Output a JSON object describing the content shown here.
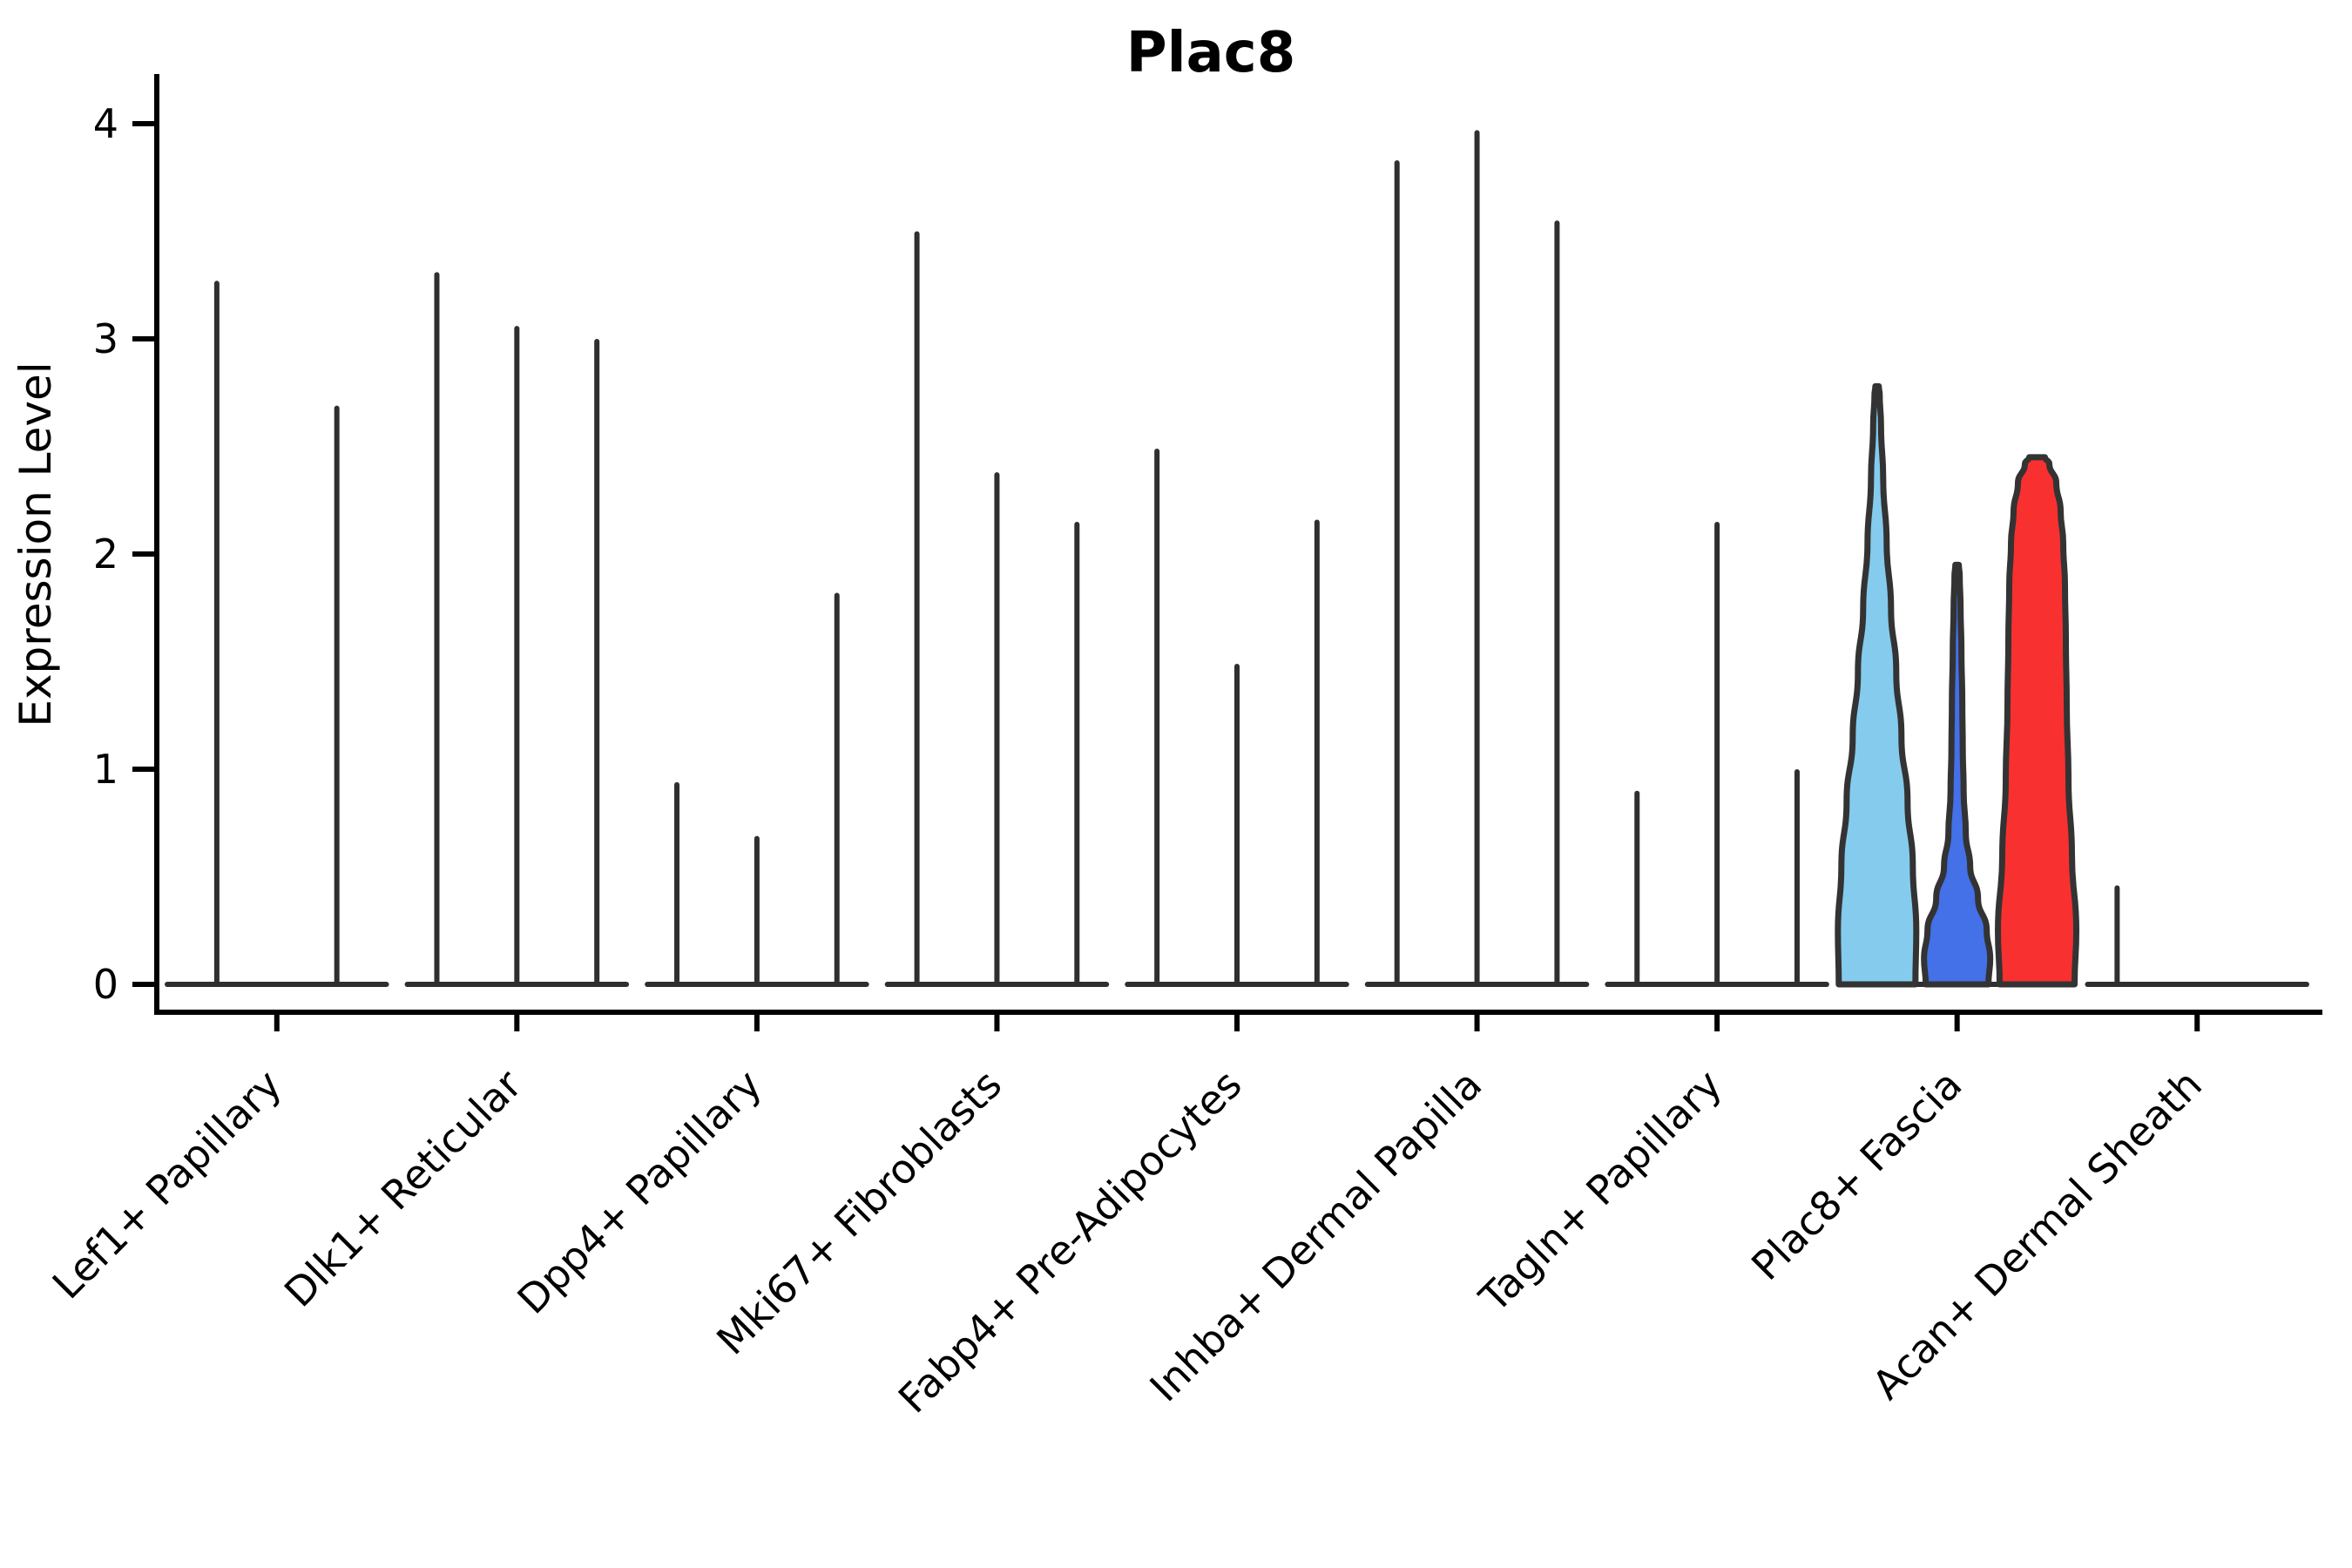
{
  "title": "Plac8",
  "ylabel": "Expression Level",
  "colors": {
    "spike": "#2F2F2F",
    "axis": "#000000",
    "violin_outline": "#333333",
    "fascia_light_blue": "#85CBEE",
    "fascia_royal_blue": "#4470E8",
    "fascia_red": "#F93030",
    "background": "#FFFFFF"
  },
  "chart_data": {
    "type": "violin",
    "title": "Plac8",
    "xlabel": "",
    "ylabel": "Expression Level",
    "ylim": [
      0,
      4.15
    ],
    "yticks": [
      0,
      1,
      2,
      3,
      4
    ],
    "grid": false,
    "legend": "none",
    "categories": [
      "Lef1+ Papillary",
      "Dlk1+ Reticular",
      "Dpp4+ Papillary",
      "Mki67+ Fibroblasts",
      "Fabp4+ Pre-Adipocytes",
      "Inhba+ Dermal Papilla",
      "Tagln+ Papillary",
      "Plac8+ Fascia",
      "Acan+ Dermal Sheath"
    ],
    "note": "Most violins are collapsed to thin spikes (near-zero density above 0); only Plac8+ Fascia shows wide colored violins.",
    "groups": [
      {
        "category": "Lef1+ Papillary",
        "violins": [
          {
            "kind": "spike",
            "max": 3.27
          },
          {
            "kind": "spike",
            "max": 2.69
          }
        ]
      },
      {
        "category": "Dlk1+ Reticular",
        "violins": [
          {
            "kind": "spike",
            "max": 3.31
          },
          {
            "kind": "spike",
            "max": 3.06
          },
          {
            "kind": "spike",
            "max": 3.0
          }
        ]
      },
      {
        "category": "Dpp4+ Papillary",
        "violins": [
          {
            "kind": "spike",
            "max": 0.94
          },
          {
            "kind": "spike",
            "max": 0.69
          },
          {
            "kind": "spike",
            "max": 1.82
          }
        ]
      },
      {
        "category": "Mki67+ Fibroblasts",
        "violins": [
          {
            "kind": "spike",
            "max": 3.5
          },
          {
            "kind": "spike",
            "max": 2.38
          },
          {
            "kind": "spike",
            "max": 2.15
          }
        ]
      },
      {
        "category": "Fabp4+ Pre-Adipocytes",
        "violins": [
          {
            "kind": "spike",
            "max": 2.49
          },
          {
            "kind": "spike",
            "max": 1.49
          },
          {
            "kind": "spike",
            "max": 2.16
          }
        ]
      },
      {
        "category": "Inhba+ Dermal Papilla",
        "violins": [
          {
            "kind": "spike",
            "max": 3.83
          },
          {
            "kind": "spike",
            "max": 3.97
          },
          {
            "kind": "spike",
            "max": 3.55
          }
        ]
      },
      {
        "category": "Tagln+ Papillary",
        "violins": [
          {
            "kind": "spike",
            "max": 0.9
          },
          {
            "kind": "spike",
            "max": 2.15
          },
          {
            "kind": "spike",
            "max": 1.0
          }
        ]
      },
      {
        "category": "Plac8+ Fascia",
        "violins": [
          {
            "kind": "violin",
            "max": 2.78,
            "color": "#85CBEE",
            "profile": [
              [
                0.0,
                44
              ],
              [
                0.25,
                45
              ],
              [
                0.55,
                41
              ],
              [
                0.85,
                35
              ],
              [
                1.15,
                28
              ],
              [
                1.45,
                22
              ],
              [
                1.75,
                16
              ],
              [
                2.05,
                11
              ],
              [
                2.35,
                7
              ],
              [
                2.6,
                4.5
              ],
              [
                2.74,
                3
              ],
              [
                2.78,
                2
              ]
            ]
          },
          {
            "kind": "violin",
            "max": 1.95,
            "color": "#4470E8",
            "profile": [
              [
                0.0,
                36
              ],
              [
                0.12,
                38
              ],
              [
                0.25,
                34
              ],
              [
                0.4,
                24
              ],
              [
                0.55,
                15
              ],
              [
                0.7,
                10
              ],
              [
                0.9,
                7.5
              ],
              [
                1.1,
                6.5
              ],
              [
                1.3,
                6
              ],
              [
                1.55,
                5
              ],
              [
                1.75,
                4
              ],
              [
                1.9,
                3
              ],
              [
                1.95,
                2
              ]
            ]
          },
          {
            "kind": "violin",
            "max": 2.45,
            "color": "#F93030",
            "profile": [
              [
                0.0,
                43
              ],
              [
                0.25,
                45
              ],
              [
                0.6,
                40
              ],
              [
                0.95,
                36
              ],
              [
                1.3,
                34
              ],
              [
                1.6,
                33
              ],
              [
                1.85,
                32
              ],
              [
                2.05,
                30
              ],
              [
                2.2,
                27
              ],
              [
                2.33,
                22
              ],
              [
                2.42,
                14
              ],
              [
                2.45,
                9
              ]
            ]
          }
        ]
      },
      {
        "category": "Acan+ Dermal Sheath",
        "violins": [
          {
            "kind": "spike",
            "max": 0.46
          },
          {
            "kind": "flat",
            "max": 0
          },
          {
            "kind": "flat",
            "max": 0
          }
        ]
      }
    ]
  }
}
